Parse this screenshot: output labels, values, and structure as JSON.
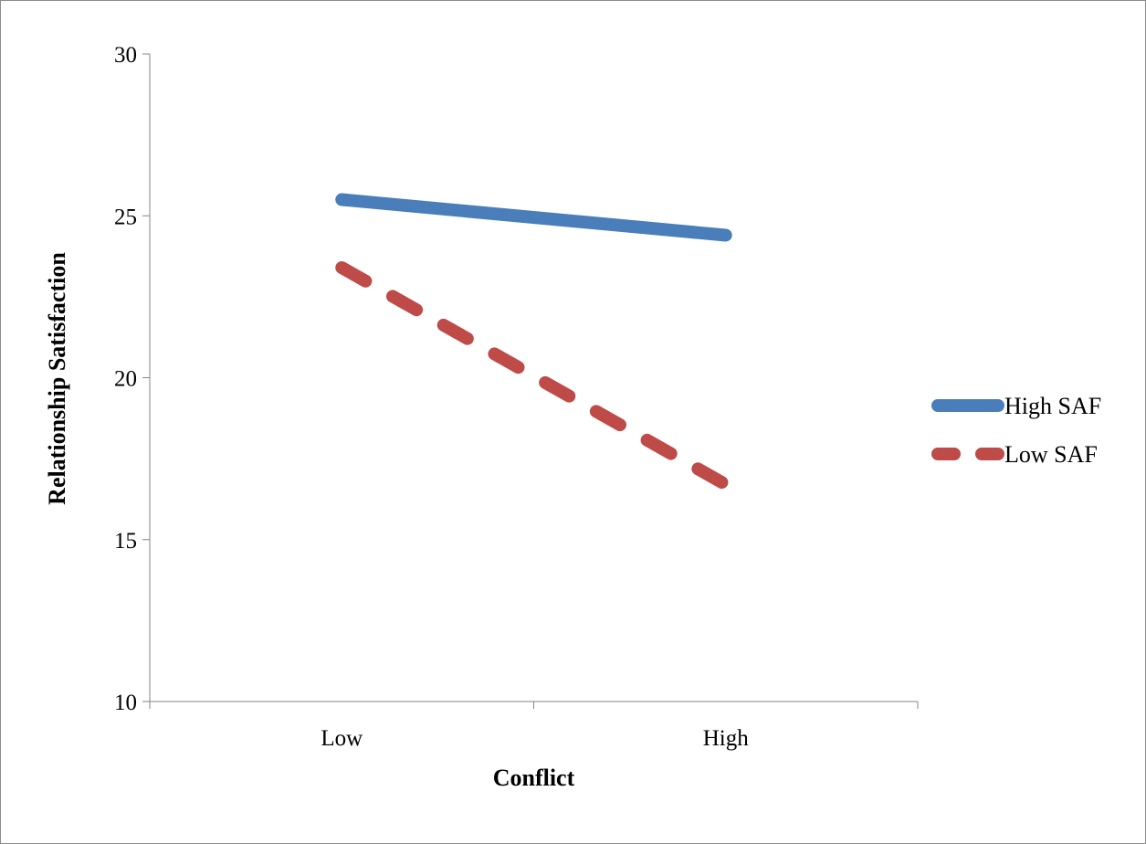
{
  "chart_data": {
    "type": "line",
    "title": "",
    "xlabel": "Conflict",
    "ylabel": "Relationship Satisfaction",
    "categories": [
      "Low",
      "High"
    ],
    "ylim": [
      10,
      30
    ],
    "yticks": [
      10,
      15,
      20,
      25,
      30
    ],
    "grid": false,
    "legend": "right",
    "series": [
      {
        "name": "High SAF",
        "values": [
          25.5,
          24.4
        ],
        "color": "#4a7ebb",
        "style": "solid"
      },
      {
        "name": "Low SAF",
        "values": [
          23.4,
          16.7
        ],
        "color": "#be4b48",
        "style": "dashed"
      }
    ]
  }
}
